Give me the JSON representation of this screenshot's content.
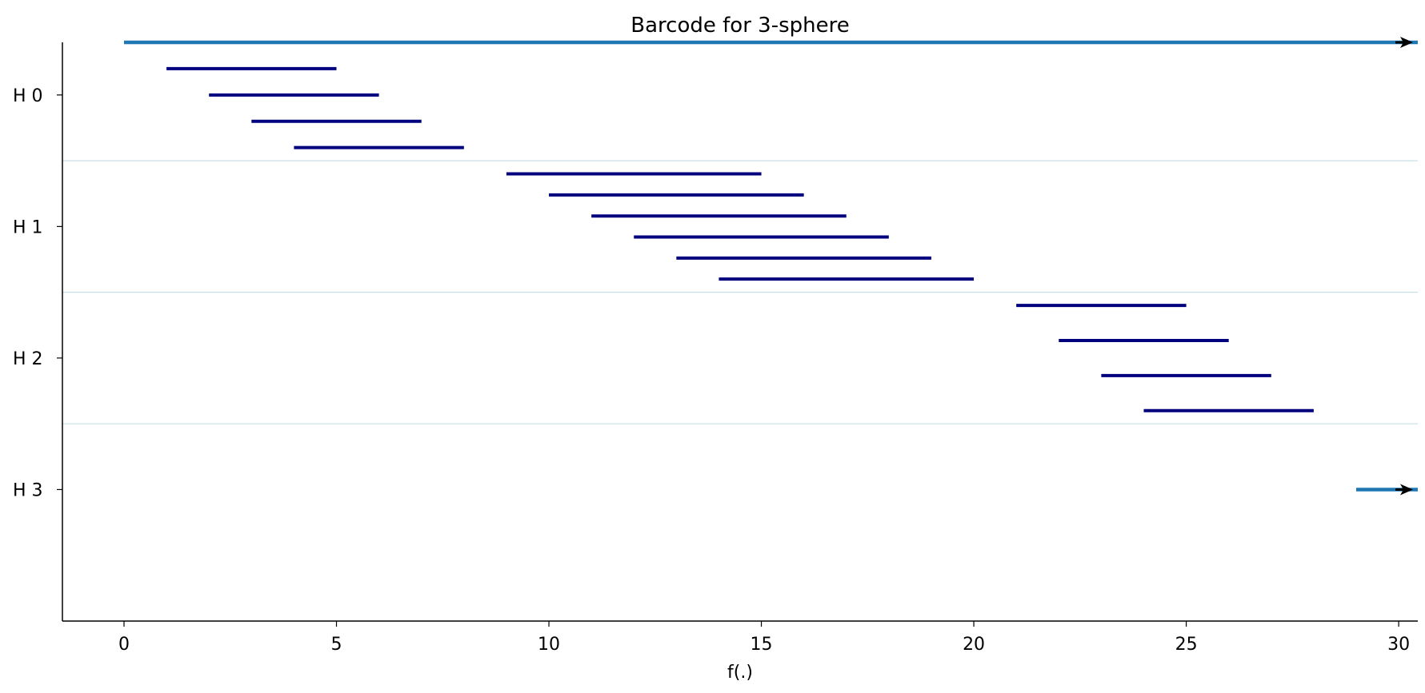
{
  "chart_data": {
    "type": "barcode",
    "title": "Barcode for 3-sphere",
    "xlabel": "f(.)",
    "ylabel": "",
    "xlim": [
      -1.45,
      30.45
    ],
    "x_ticks": [
      0,
      5,
      10,
      15,
      20,
      25,
      30
    ],
    "infinite_bar_color": "#1f77b4",
    "finite_bar_color": "#00007f",
    "separator_color": "#c9dfe8",
    "groups": [
      {
        "label": "H 0",
        "bars": [
          {
            "birth": 0,
            "death": null
          },
          {
            "birth": 1,
            "death": 5
          },
          {
            "birth": 2,
            "death": 6
          },
          {
            "birth": 3,
            "death": 7
          },
          {
            "birth": 4,
            "death": 8
          }
        ]
      },
      {
        "label": "H 1",
        "bars": [
          {
            "birth": 9,
            "death": 15
          },
          {
            "birth": 10,
            "death": 16
          },
          {
            "birth": 11,
            "death": 17
          },
          {
            "birth": 12,
            "death": 18
          },
          {
            "birth": 13,
            "death": 19
          },
          {
            "birth": 14,
            "death": 20
          }
        ]
      },
      {
        "label": "H 2",
        "bars": [
          {
            "birth": 21,
            "death": 25
          },
          {
            "birth": 22,
            "death": 26
          },
          {
            "birth": 23,
            "death": 27
          },
          {
            "birth": 24,
            "death": 28
          }
        ]
      },
      {
        "label": "H 3",
        "bars": [
          {
            "birth": 29,
            "death": null
          }
        ]
      }
    ]
  }
}
